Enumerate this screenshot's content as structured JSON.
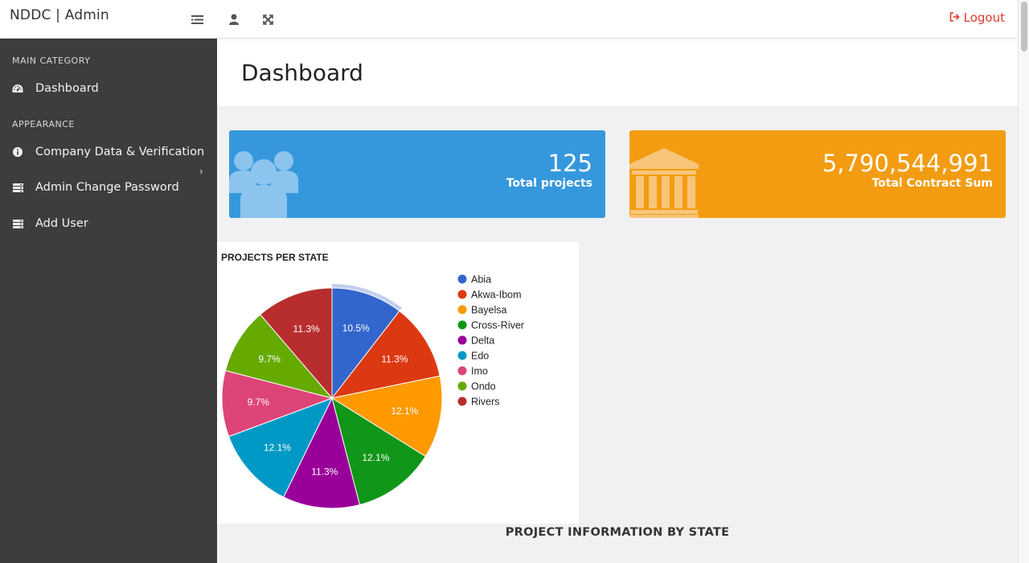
{
  "topbar": {
    "brand": "NDDC | Admin",
    "icons": [
      "menu-list-icon",
      "user-icon",
      "fullscreen-icon"
    ],
    "logout_label": "Logout",
    "logout_color": "#e0392b"
  },
  "sidebar": {
    "categories": [
      {
        "label": "MAIN CATEGORY"
      },
      {
        "label": "APPEARANCE"
      }
    ],
    "items": [
      {
        "label": "Dashboard",
        "icon": "dashboard-icon"
      },
      {
        "label": "Company Data & Verification",
        "icon": "info-circle-icon"
      },
      {
        "label": "Admin Change Password",
        "icon": "server-icon"
      },
      {
        "label": "Add User",
        "icon": "server-icon"
      }
    ]
  },
  "page": {
    "title": "Dashboard"
  },
  "cards": [
    {
      "value": "125",
      "label": "Total projects",
      "color": "#3698dc",
      "icon": "users-icon"
    },
    {
      "value": "5,790,544,991",
      "label": "Total Contract Sum",
      "color": "#f39c12",
      "icon": "bank-icon"
    }
  ],
  "chart_data": {
    "type": "pie",
    "title": "PROJECTS PER STATE",
    "legend_position": "right",
    "slices": [
      {
        "label": "Abia",
        "value": 10.5,
        "text": "10.5%",
        "color": "#3366cc"
      },
      {
        "label": "Akwa-Ibom",
        "value": 11.3,
        "text": "11.3%",
        "color": "#dc3912"
      },
      {
        "label": "Bayelsa",
        "value": 12.1,
        "text": "12.1%",
        "color": "#ff9900"
      },
      {
        "label": "Cross-River",
        "value": 12.1,
        "text": "12.1%",
        "color": "#109618"
      },
      {
        "label": "Delta",
        "value": 11.3,
        "text": "11.3%",
        "color": "#990099"
      },
      {
        "label": "Edo",
        "value": 12.1,
        "text": "12.1%",
        "color": "#0099c6"
      },
      {
        "label": "Imo",
        "value": 9.7,
        "text": "9.7%",
        "color": "#dd4477"
      },
      {
        "label": "Ondo",
        "value": 9.7,
        "text": "9.7%",
        "color": "#66aa00"
      },
      {
        "label": "Rivers",
        "value": 11.3,
        "text": "11.3%",
        "color": "#b82e2e"
      }
    ]
  },
  "section": {
    "title": "PROJECT INFORMATION BY STATE"
  }
}
